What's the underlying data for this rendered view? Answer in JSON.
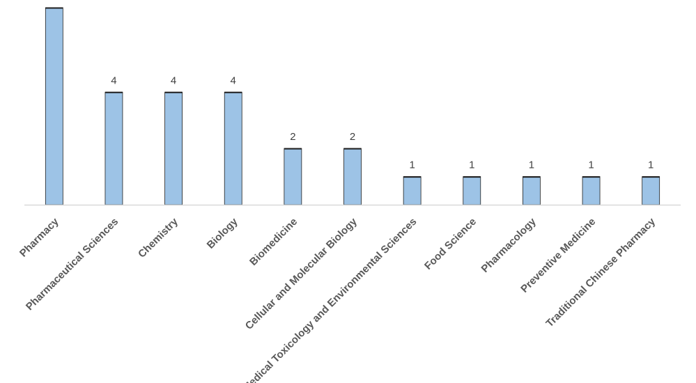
{
  "chart_data": {
    "type": "bar",
    "categories": [
      "Pharmacy",
      "Pharmaceutical Sciences",
      "Chemistry",
      "Biology",
      "Biomedicine",
      "Cellular and Molecular Biology",
      "Medical Toxicology and Environmental Sciences",
      "Food Science",
      "Pharmacology",
      "Preventive Medicine",
      "Traditional Chinese Pharmacy"
    ],
    "values": [
      7,
      4,
      4,
      4,
      2,
      2,
      1,
      1,
      1,
      1,
      1
    ],
    "data_labels": [
      "",
      "4",
      "4",
      "4",
      "2",
      "2",
      "1",
      "1",
      "1",
      "1",
      "1"
    ],
    "ylim": [
      0,
      7
    ],
    "grid": false,
    "legend": "none",
    "colors": {
      "bar_fill": "#9DC3E6",
      "bar_stroke": "#1F1F1F",
      "axis": "#D9D9D9",
      "label_text": "#595959",
      "value_text": "#404040"
    }
  }
}
